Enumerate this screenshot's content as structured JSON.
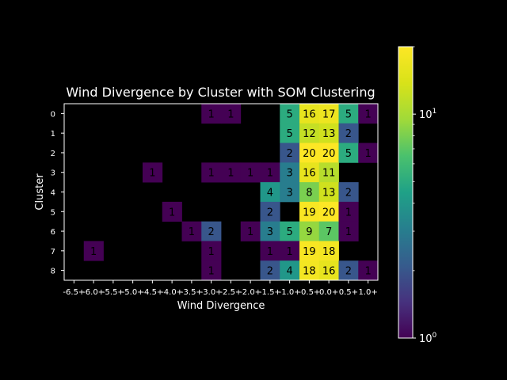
{
  "chart_data": {
    "type": "heatmap",
    "title": "Wind Divergence by Cluster with SOM Clustering",
    "xlabel": "Wind Divergence",
    "ylabel": "Cluster",
    "x_categories": [
      "-6.5+",
      "-6.0+",
      "-5.5+",
      "-5.0+",
      "-4.5+",
      "-4.0+",
      "-3.5+",
      "-3.0+",
      "-2.5+",
      "-2.0+",
      "-1.5+",
      "-1.0+",
      "-0.5+",
      "0.0+",
      "0.5+",
      "1.0+"
    ],
    "y_categories": [
      "0",
      "1",
      "2",
      "3",
      "4",
      "5",
      "6",
      "7",
      "8"
    ],
    "values": [
      [
        null,
        null,
        null,
        null,
        null,
        null,
        null,
        1,
        1,
        null,
        null,
        5,
        16,
        17,
        5,
        1
      ],
      [
        null,
        null,
        null,
        null,
        null,
        null,
        null,
        null,
        null,
        null,
        null,
        5,
        12,
        13,
        2,
        null
      ],
      [
        null,
        null,
        null,
        null,
        null,
        null,
        null,
        null,
        null,
        null,
        null,
        2,
        20,
        20,
        5,
        1
      ],
      [
        null,
        null,
        null,
        null,
        1,
        null,
        null,
        1,
        1,
        1,
        1,
        3,
        16,
        11,
        null,
        null
      ],
      [
        null,
        null,
        null,
        null,
        null,
        null,
        null,
        null,
        null,
        null,
        4,
        3,
        8,
        13,
        2,
        null
      ],
      [
        null,
        null,
        null,
        null,
        null,
        1,
        null,
        null,
        null,
        null,
        2,
        null,
        19,
        20,
        1,
        null
      ],
      [
        null,
        null,
        null,
        null,
        null,
        null,
        1,
        2,
        null,
        1,
        3,
        5,
        9,
        7,
        1,
        null
      ],
      [
        null,
        1,
        null,
        null,
        null,
        null,
        null,
        1,
        null,
        null,
        1,
        1,
        19,
        18,
        null,
        null
      ],
      [
        null,
        null,
        null,
        null,
        null,
        null,
        null,
        1,
        null,
        null,
        2,
        4,
        18,
        16,
        2,
        1
      ]
    ],
    "colorscale": "viridis",
    "color_scale_type": "log",
    "color_range": [
      1,
      20
    ],
    "colorbar_ticks": [
      {
        "base": "10",
        "exp": "0",
        "value": 1
      },
      {
        "base": "10",
        "exp": "1",
        "value": 10
      }
    ],
    "background": "#000000",
    "text_color": "#ffffff"
  }
}
